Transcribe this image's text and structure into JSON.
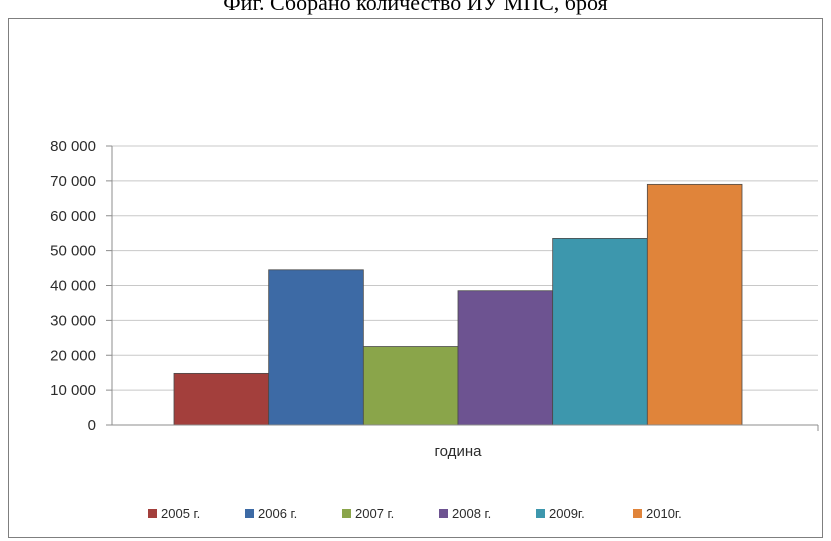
{
  "caption": "Фиг. Сборано количество ИУ МПС, броя",
  "chart_data": {
    "type": "bar",
    "categories": [
      "година"
    ],
    "xlabel": "година",
    "ylim": [
      0,
      80000
    ],
    "yticks": [
      {
        "value": 0,
        "label": "0"
      },
      {
        "value": 10000,
        "label": "10 000"
      },
      {
        "value": 20000,
        "label": "20 000"
      },
      {
        "value": 30000,
        "label": "30 000"
      },
      {
        "value": 40000,
        "label": "40 000"
      },
      {
        "value": 50000,
        "label": "50 000"
      },
      {
        "value": 60000,
        "label": "60 000"
      },
      {
        "value": 70000,
        "label": "70 000"
      },
      {
        "value": 80000,
        "label": "80 000"
      }
    ],
    "grid": true,
    "legend_position": "bottom",
    "series": [
      {
        "name": "2005 г.",
        "values": [
          14800
        ],
        "color": "#a33f3c"
      },
      {
        "name": "2006 г.",
        "values": [
          44500
        ],
        "color": "#3d6aa5"
      },
      {
        "name": "2007 г.",
        "values": [
          22500
        ],
        "color": "#8aa54a"
      },
      {
        "name": "2008 г.",
        "values": [
          38500
        ],
        "color": "#6d5391"
      },
      {
        "name": "2009г.",
        "values": [
          53500
        ],
        "color": "#3d97ad"
      },
      {
        "name": "2010г.",
        "values": [
          69000
        ],
        "color": "#e0843a"
      }
    ]
  }
}
